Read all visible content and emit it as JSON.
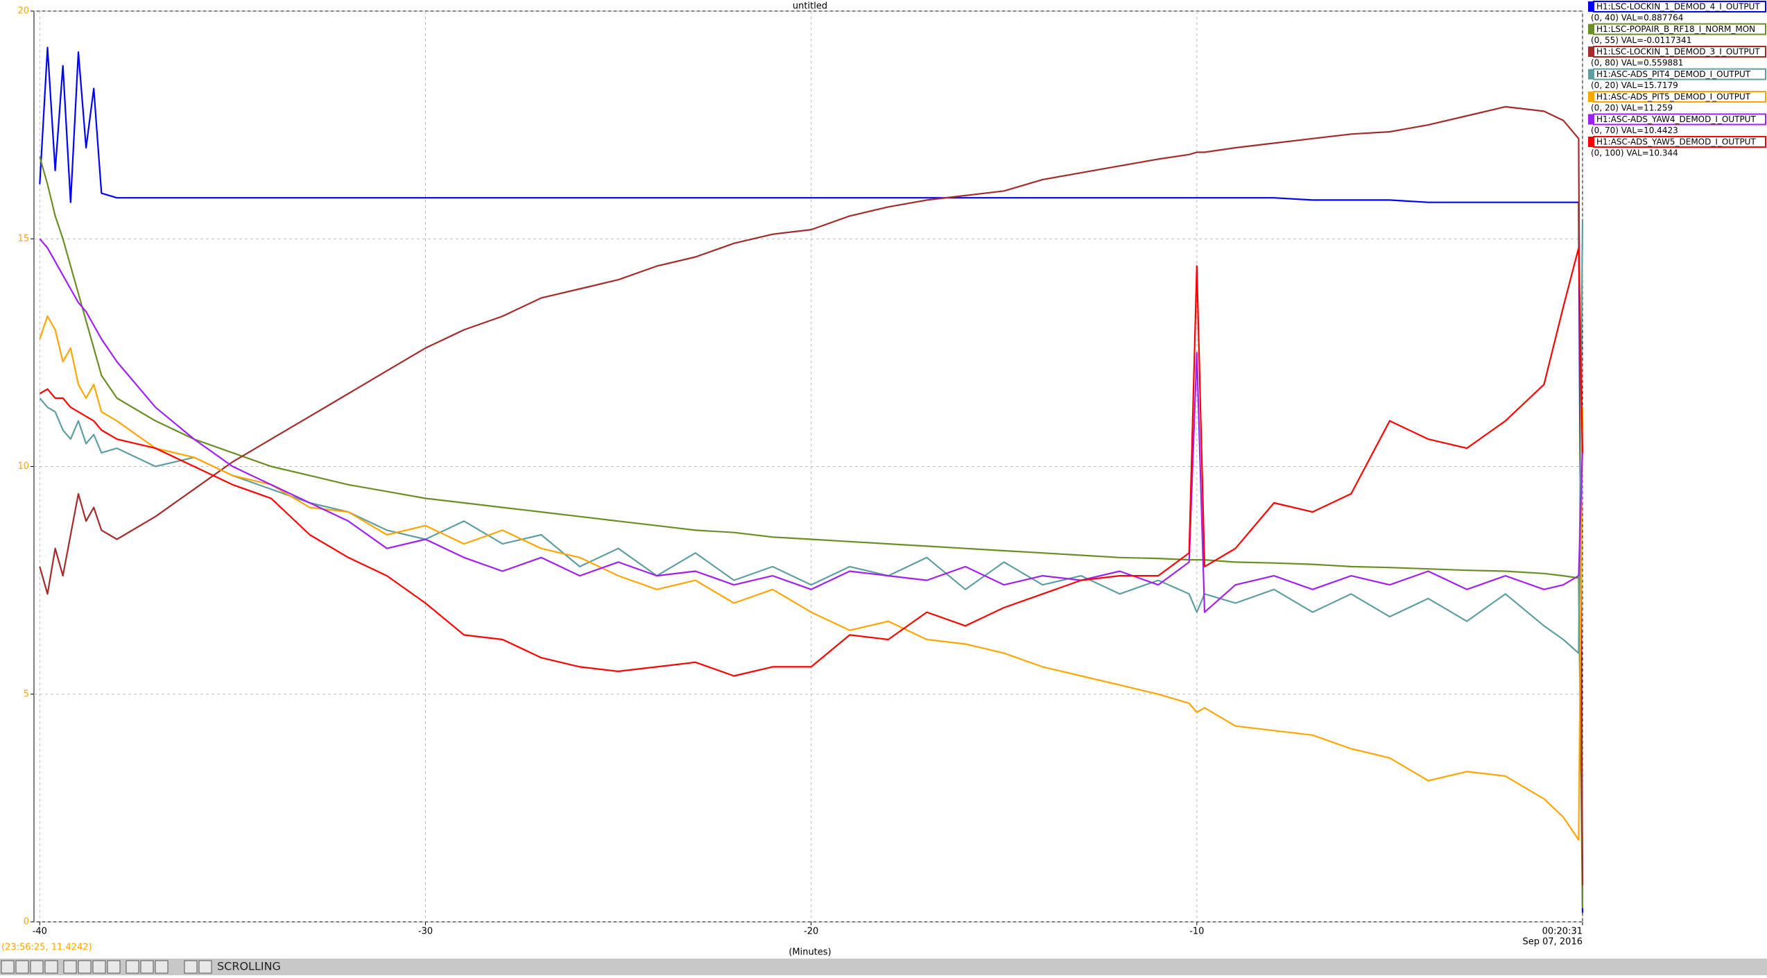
{
  "chart_data": {
    "type": "line",
    "title": "untitled",
    "x_label": "(Minutes)",
    "x": [
      -40,
      -39.8,
      -39.6,
      -39.4,
      -39.2,
      -39,
      -38.8,
      -38.6,
      -38.4,
      -38,
      -37,
      -36,
      -35,
      -34,
      -33,
      -32,
      -31,
      -30,
      -29,
      -28,
      -27,
      -26,
      -25,
      -24,
      -23,
      -22,
      -21,
      -20,
      -19,
      -18,
      -17,
      -16,
      -15,
      -14,
      -13,
      -12,
      -11,
      -10.2,
      -10,
      -9.8,
      -9,
      -8,
      -7,
      -6,
      -5,
      -4,
      -3,
      -2,
      -1,
      -0.5,
      -0.1,
      0
    ],
    "xlim": [
      -40.15,
      0
    ],
    "xticks": [
      -40,
      -30,
      -20,
      -10,
      {
        "value": 0,
        "label": "00:20:31"
      }
    ],
    "xtick_sublabel": "Sep 07, 2016",
    "ylim": [
      0,
      20
    ],
    "yticks": [
      0,
      5,
      10,
      15,
      20
    ],
    "ytick_color": "#ffa500",
    "grid": true,
    "series": [
      {
        "name": "H1:LSC-LOCKIN_1_DEMOD_4_I_OUTPUT",
        "readout": "(0, 40) VAL=0.887764",
        "color": "#0000ff",
        "values": [
          16.2,
          19.2,
          16.5,
          18.8,
          15.8,
          19.1,
          17,
          18.3,
          16,
          15.9,
          15.9,
          15.9,
          15.9,
          15.9,
          15.9,
          15.9,
          15.9,
          15.9,
          15.9,
          15.9,
          15.9,
          15.9,
          15.9,
          15.9,
          15.9,
          15.9,
          15.9,
          15.9,
          15.9,
          15.9,
          15.9,
          15.9,
          15.9,
          15.9,
          15.9,
          15.9,
          15.9,
          15.9,
          15.9,
          15.9,
          15.9,
          15.9,
          15.85,
          15.85,
          15.85,
          15.8,
          15.8,
          15.8,
          15.8,
          15.8,
          15.8,
          0.2
        ]
      },
      {
        "name": "H1:LSC-POPAIR_B_RF18_I_NORM_MON",
        "readout": "(0, 55) VAL=-0.0117341",
        "color": "#6b8e23",
        "values": [
          16.8,
          16.2,
          15.5,
          15,
          14.4,
          13.8,
          13.2,
          12.6,
          12,
          11.5,
          11,
          10.6,
          10.3,
          10,
          9.8,
          9.6,
          9.45,
          9.3,
          9.2,
          9.1,
          9,
          8.9,
          8.8,
          8.7,
          8.6,
          8.55,
          8.45,
          8.4,
          8.35,
          8.3,
          8.25,
          8.2,
          8.15,
          8.1,
          8.05,
          8,
          7.98,
          7.95,
          7.95,
          7.95,
          7.9,
          7.88,
          7.85,
          7.8,
          7.78,
          7.75,
          7.72,
          7.7,
          7.65,
          7.6,
          7.55,
          0.3
        ]
      },
      {
        "name": "H1:LSC-LOCKIN_1_DEMOD_3_I_OUTPUT",
        "readout": "(0, 80) VAL=0.559881",
        "color": "#a52a2a",
        "values": [
          7.8,
          7.2,
          8.2,
          7.6,
          8.5,
          9.4,
          8.8,
          9.1,
          8.6,
          8.4,
          8.9,
          9.5,
          10.1,
          10.6,
          11.1,
          11.6,
          12.1,
          12.6,
          13,
          13.3,
          13.7,
          13.9,
          14.1,
          14.4,
          14.6,
          14.9,
          15.1,
          15.2,
          15.5,
          15.7,
          15.85,
          15.95,
          16.05,
          16.3,
          16.45,
          16.6,
          16.75,
          16.85,
          16.9,
          16.9,
          17,
          17.1,
          17.2,
          17.3,
          17.35,
          17.5,
          17.7,
          17.9,
          17.8,
          17.6,
          17.2,
          0.8
        ]
      },
      {
        "name": "H1:ASC-ADS_PIT4_DEMOD_I_OUTPUT",
        "readout": "(0, 20) VAL=15.7179",
        "color": "#5f9ea0",
        "values": [
          11.5,
          11.3,
          11.2,
          10.8,
          10.6,
          11,
          10.5,
          10.7,
          10.3,
          10.4,
          10,
          10.2,
          9.8,
          9.5,
          9.2,
          9,
          8.6,
          8.4,
          8.8,
          8.3,
          8.5,
          7.8,
          8.2,
          7.6,
          8.1,
          7.5,
          7.8,
          7.4,
          7.8,
          7.6,
          8,
          7.3,
          7.9,
          7.4,
          7.6,
          7.2,
          7.5,
          7.2,
          6.8,
          7.2,
          7,
          7.3,
          6.8,
          7.2,
          6.7,
          7.1,
          6.6,
          7.2,
          6.5,
          6.2,
          5.9,
          15.4
        ]
      },
      {
        "name": "H1:ASC-ADS_PIT5_DEMOD_I_OUTPUT",
        "readout": "(0, 20) VAL=11.259",
        "color": "#ffa500",
        "values": [
          12.8,
          13.3,
          13,
          12.3,
          12.6,
          11.8,
          11.5,
          11.8,
          11.2,
          11,
          10.4,
          10.2,
          9.8,
          9.6,
          9.1,
          9,
          8.5,
          8.7,
          8.3,
          8.6,
          8.2,
          8,
          7.6,
          7.3,
          7.5,
          7,
          7.3,
          6.8,
          6.4,
          6.6,
          6.2,
          6.1,
          5.9,
          5.6,
          5.4,
          5.2,
          5,
          4.8,
          4.6,
          4.7,
          4.3,
          4.2,
          4.1,
          3.8,
          3.6,
          3.1,
          3.3,
          3.2,
          2.7,
          2.3,
          1.8,
          11.3
        ]
      },
      {
        "name": "H1:ASC-ADS_YAW4_DEMOD_I_OUTPUT",
        "readout": "(0, 70) VAL=10.4423",
        "color": "#a020f0",
        "values": [
          15,
          14.8,
          14.5,
          14.2,
          13.9,
          13.6,
          13.4,
          13.1,
          12.8,
          12.3,
          11.3,
          10.6,
          10,
          9.6,
          9.2,
          8.8,
          8.2,
          8.4,
          8,
          7.7,
          8,
          7.6,
          7.9,
          7.6,
          7.7,
          7.4,
          7.6,
          7.3,
          7.7,
          7.6,
          7.5,
          7.8,
          7.4,
          7.6,
          7.5,
          7.7,
          7.4,
          7.9,
          12.5,
          6.8,
          7.4,
          7.6,
          7.3,
          7.6,
          7.4,
          7.7,
          7.3,
          7.6,
          7.3,
          7.4,
          7.6,
          10.4
        ]
      },
      {
        "name": "H1:ASC-ADS_YAW5_DEMOD_I_OUTPUT",
        "readout": "(0, 100) VAL=10.344",
        "color": "#ff0000",
        "values": [
          11.6,
          11.7,
          11.5,
          11.5,
          11.3,
          11.2,
          11.1,
          11,
          10.8,
          10.6,
          10.4,
          10,
          9.6,
          9.3,
          8.5,
          8,
          7.6,
          7,
          6.3,
          6.2,
          5.8,
          5.6,
          5.5,
          5.6,
          5.7,
          5.4,
          5.6,
          5.6,
          6.3,
          6.2,
          6.8,
          6.5,
          6.9,
          7.2,
          7.5,
          7.6,
          7.6,
          8.1,
          14.4,
          7.8,
          8.2,
          9.2,
          9,
          9.4,
          11,
          10.6,
          10.4,
          11,
          11.8,
          13.5,
          14.8,
          10.3
        ]
      }
    ]
  },
  "cursor_readout": "(23:56:25, 11.4242)",
  "toolbar": {
    "mode": "SCROLLING"
  }
}
